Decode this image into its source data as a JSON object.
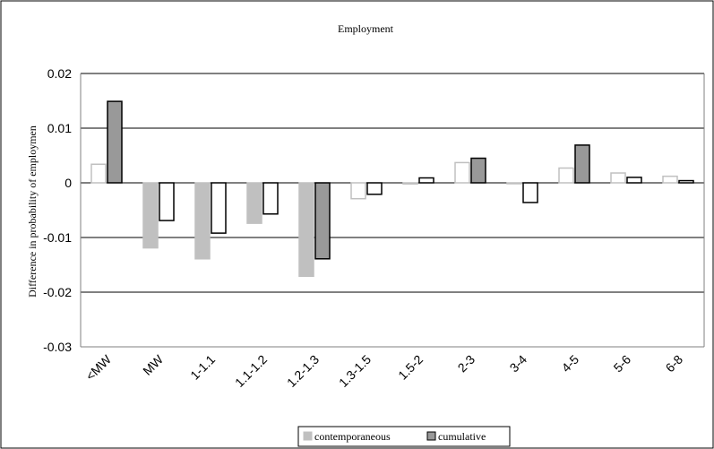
{
  "chart_data": {
    "type": "bar",
    "title": "Employment",
    "xlabel": "",
    "ylabel": "Difference in probability of employmen",
    "ylim": [
      -0.03,
      0.02
    ],
    "yticks": [
      "-0.03",
      "-0.02",
      "-0.01",
      "0",
      "0.01",
      "0.02"
    ],
    "ytick_values": [
      -0.03,
      -0.02,
      -0.01,
      0,
      0.01,
      0.02
    ],
    "grid": true,
    "legend": "bottom-center",
    "categories": [
      "<MW",
      "MW",
      "1-1.1",
      "1.1-1.2",
      "1.2-1.3",
      "1.3-1.5",
      "1.5-2",
      "2-3",
      "3-4",
      "4-5",
      "5-6",
      "6-8"
    ],
    "series": [
      {
        "name": "contemporaneous",
        "values": [
          0.0034,
          -0.0119,
          -0.0139,
          -0.0074,
          -0.0171,
          -0.0029,
          -0.0002,
          0.0037,
          0.0,
          0.0027,
          0.0018,
          0.0012
        ]
      },
      {
        "name": "cumulative",
        "values": [
          0.0149,
          -0.0069,
          -0.0092,
          -0.0057,
          -0.0139,
          -0.0021,
          0.0009,
          0.0045,
          -0.0036,
          0.0069,
          0.001,
          0.0004
        ]
      }
    ],
    "colors": {
      "contemporaneous_bar": "#c0c0c0",
      "cumulative_bar": "#999999",
      "outline_light": "#c0c0c0",
      "outline_dark": "#000000"
    }
  }
}
